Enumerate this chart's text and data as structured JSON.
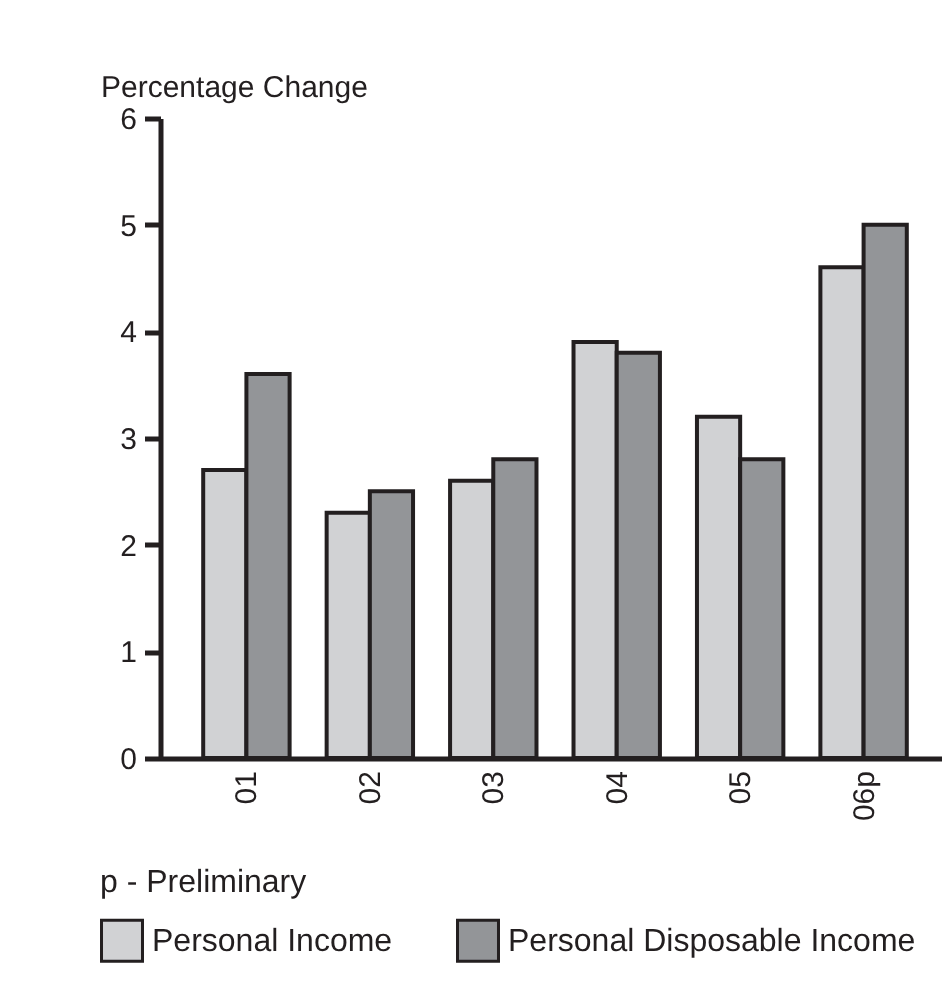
{
  "chart_data": {
    "type": "bar",
    "ylabel": "Percentage Change",
    "categories": [
      "01",
      "02",
      "03",
      "04",
      "05",
      "06p"
    ],
    "series": [
      {
        "name": "Personal Income",
        "color": "#d1d2d4",
        "values": [
          2.7,
          2.3,
          2.6,
          3.9,
          3.2,
          4.6
        ]
      },
      {
        "name": "Personal Disposable Income",
        "color": "#939598",
        "values": [
          3.6,
          2.5,
          2.8,
          3.8,
          2.8,
          5.0
        ]
      }
    ],
    "ylim": [
      0,
      6
    ],
    "yticks": [
      0,
      1,
      2,
      3,
      4,
      5,
      6
    ],
    "grid": false,
    "legend": "bottom",
    "annotations": [
      "p - Preliminary"
    ]
  }
}
